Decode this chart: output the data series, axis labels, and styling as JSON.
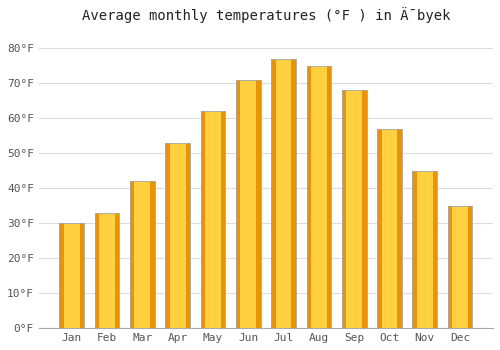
{
  "title": "Average monthly temperatures (°F ) in Ǟbyek",
  "months": [
    "Jan",
    "Feb",
    "Mar",
    "Apr",
    "May",
    "Jun",
    "Jul",
    "Aug",
    "Sep",
    "Oct",
    "Nov",
    "Dec"
  ],
  "values": [
    30,
    33,
    42,
    53,
    62,
    71,
    77,
    75,
    68,
    57,
    45,
    35
  ],
  "ylim": [
    0,
    85
  ],
  "yticks": [
    0,
    10,
    20,
    30,
    40,
    50,
    60,
    70,
    80
  ],
  "ytick_labels": [
    "0°F",
    "10°F",
    "20°F",
    "30°F",
    "40°F",
    "50°F",
    "60°F",
    "70°F",
    "80°F"
  ],
  "bg_color": "#FFFFFF",
  "grid_color": "#DDDDDD",
  "title_fontsize": 10,
  "tick_fontsize": 8,
  "bar_center_color": "#FFD040",
  "bar_edge_color": "#E8930A",
  "bar_border_color": "#AAAAAA"
}
